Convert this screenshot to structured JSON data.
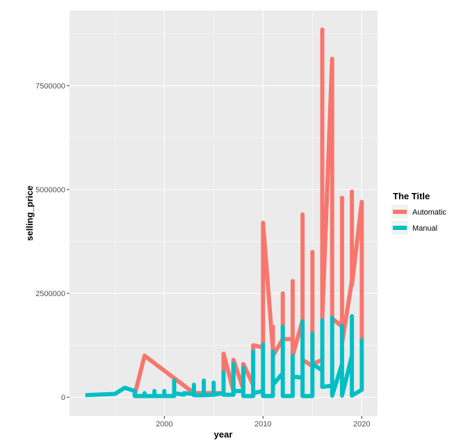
{
  "chart_data": {
    "type": "line",
    "title": "",
    "xlabel": "year",
    "ylabel": "selling_price",
    "xlim": [
      1990.4,
      2021.6
    ],
    "ylim": [
      -450000,
      9310000
    ],
    "x_ticks": [
      2000,
      2010,
      2020
    ],
    "x_tick_labels": [
      "2000",
      "2010",
      "2020"
    ],
    "y_ticks": [
      0,
      2500000,
      5000000,
      7500000
    ],
    "y_tick_labels": [
      "0",
      "2500000",
      "5000000",
      "7500000"
    ],
    "grid": true,
    "legend": {
      "title": "The Title",
      "position": "right"
    },
    "series": [
      {
        "name": "Automatic",
        "color": "#F8766D",
        "points": [
          [
            1997,
            60000
          ],
          [
            1998,
            1000000
          ],
          [
            2003,
            100000
          ],
          [
            2006,
            100000
          ],
          [
            2006,
            1050000
          ],
          [
            2007,
            150000
          ],
          [
            2007,
            900000
          ],
          [
            2008,
            200000
          ],
          [
            2008,
            800000
          ],
          [
            2009,
            300000
          ],
          [
            2009,
            1250000
          ],
          [
            2010,
            1200000
          ],
          [
            2010,
            4200000
          ],
          [
            2011,
            1150000
          ],
          [
            2011,
            1700000
          ],
          [
            2011,
            1000000
          ],
          [
            2012,
            1400000
          ],
          [
            2012,
            2500000
          ],
          [
            2012,
            1400000
          ],
          [
            2013,
            1400000
          ],
          [
            2013,
            2800000
          ],
          [
            2013,
            1000000
          ],
          [
            2014,
            1850000
          ],
          [
            2014,
            4400000
          ],
          [
            2014,
            900000
          ],
          [
            2015,
            750000
          ],
          [
            2015,
            3500000
          ],
          [
            2015,
            800000
          ],
          [
            2016,
            900000
          ],
          [
            2016,
            8850000
          ],
          [
            2016,
            1900000
          ],
          [
            2017,
            8150000
          ],
          [
            2017,
            1900000
          ],
          [
            2018,
            1700000
          ],
          [
            2018,
            4800000
          ],
          [
            2018,
            1300000
          ],
          [
            2019,
            2800000
          ],
          [
            2019,
            4950000
          ],
          [
            2019,
            2700000
          ],
          [
            2020,
            4700000
          ],
          [
            2020,
            1400000
          ]
        ]
      },
      {
        "name": "Manual",
        "color": "#00BFC4",
        "points": [
          [
            1992,
            50000
          ],
          [
            1995,
            80000
          ],
          [
            1996,
            230000
          ],
          [
            1997,
            150000
          ],
          [
            1997,
            30000
          ],
          [
            1998,
            30000
          ],
          [
            1998,
            100000
          ],
          [
            1998,
            30000
          ],
          [
            1999,
            30000
          ],
          [
            1999,
            150000
          ],
          [
            1999,
            30000
          ],
          [
            2000,
            30000
          ],
          [
            2000,
            150000
          ],
          [
            2000,
            30000
          ],
          [
            2001,
            30000
          ],
          [
            2001,
            400000
          ],
          [
            2001,
            100000
          ],
          [
            2002,
            60000
          ],
          [
            2002,
            100000
          ],
          [
            2003,
            80000
          ],
          [
            2003,
            300000
          ],
          [
            2003,
            50000
          ],
          [
            2004,
            50000
          ],
          [
            2004,
            400000
          ],
          [
            2004,
            50000
          ],
          [
            2005,
            60000
          ],
          [
            2005,
            350000
          ],
          [
            2005,
            60000
          ],
          [
            2006,
            100000
          ],
          [
            2006,
            600000
          ],
          [
            2006,
            60000
          ],
          [
            2007,
            60000
          ],
          [
            2007,
            800000
          ],
          [
            2007,
            150000
          ],
          [
            2008,
            150000
          ],
          [
            2008,
            700000
          ],
          [
            2008,
            30000
          ],
          [
            2009,
            30000
          ],
          [
            2009,
            1100000
          ],
          [
            2009,
            100000
          ],
          [
            2010,
            150000
          ],
          [
            2010,
            1270000
          ],
          [
            2010,
            30000
          ],
          [
            2011,
            30000
          ],
          [
            2011,
            1100000
          ],
          [
            2011,
            300000
          ],
          [
            2012,
            580000
          ],
          [
            2012,
            1700000
          ],
          [
            2012,
            30000
          ],
          [
            2013,
            30000
          ],
          [
            2013,
            1000000
          ],
          [
            2013,
            500000
          ],
          [
            2014,
            470000
          ],
          [
            2014,
            1830000
          ],
          [
            2014,
            30000
          ],
          [
            2015,
            30000
          ],
          [
            2015,
            1530000
          ],
          [
            2015,
            800000
          ],
          [
            2016,
            650000
          ],
          [
            2016,
            1850000
          ],
          [
            2016,
            250000
          ],
          [
            2017,
            280000
          ],
          [
            2017,
            1920000
          ],
          [
            2017,
            40000
          ],
          [
            2018,
            800000
          ],
          [
            2018,
            1720000
          ],
          [
            2018,
            40000
          ],
          [
            2019,
            1000000
          ],
          [
            2019,
            1950000
          ],
          [
            2019,
            40000
          ],
          [
            2020,
            180000
          ],
          [
            2020,
            1420000
          ]
        ]
      }
    ]
  }
}
